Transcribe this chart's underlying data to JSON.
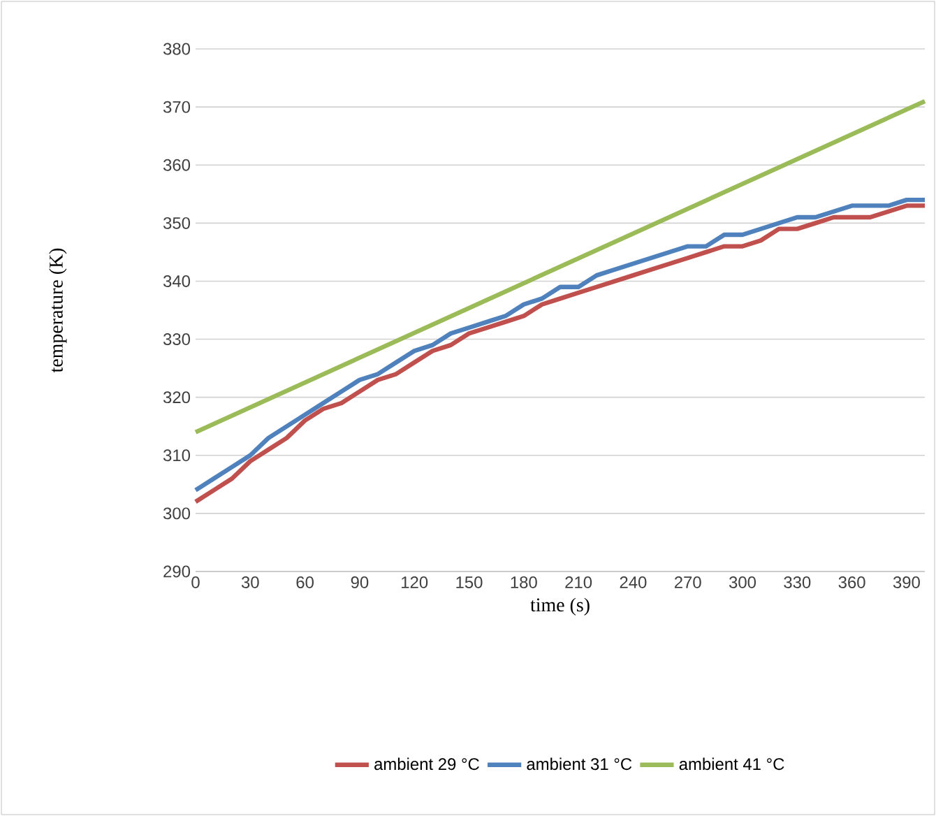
{
  "chart_data": {
    "type": "line",
    "xlabel": "time (s)",
    "ylabel": "temperature (K)",
    "x": [
      0,
      10,
      20,
      30,
      40,
      50,
      60,
      70,
      80,
      90,
      100,
      110,
      120,
      130,
      140,
      150,
      160,
      170,
      180,
      190,
      200,
      210,
      220,
      230,
      240,
      250,
      260,
      270,
      280,
      290,
      300,
      310,
      320,
      330,
      340,
      350,
      360,
      370,
      380,
      390,
      400
    ],
    "series": [
      {
        "name": "ambient 29 °C",
        "color": "#c0504d",
        "values": [
          302,
          304,
          306,
          309,
          311,
          313,
          316,
          318,
          319,
          321,
          323,
          324,
          326,
          328,
          329,
          331,
          332,
          333,
          334,
          336,
          337,
          338,
          339,
          340,
          341,
          342,
          343,
          344,
          345,
          346,
          346,
          347,
          349,
          349,
          350,
          351,
          351,
          351,
          352,
          353,
          353
        ]
      },
      {
        "name": "ambient 31 °C",
        "color": "#4f81bd",
        "values": [
          304,
          306,
          308,
          310,
          313,
          315,
          317,
          319,
          321,
          323,
          324,
          326,
          328,
          329,
          331,
          332,
          333,
          334,
          336,
          337,
          339,
          339,
          341,
          342,
          343,
          344,
          345,
          346,
          346,
          348,
          348,
          349,
          350,
          351,
          351,
          352,
          353,
          353,
          353,
          354,
          354
        ]
      },
      {
        "name": "ambient 41 °C",
        "color": "#9bbb59",
        "x": [
          0,
          400
        ],
        "values": [
          314,
          371
        ]
      }
    ],
    "xlim": [
      0,
      400
    ],
    "ylim": [
      290,
      380
    ],
    "xticks": [
      0,
      30,
      60,
      90,
      120,
      150,
      180,
      210,
      240,
      270,
      300,
      330,
      360,
      390
    ],
    "yticks": [
      290,
      300,
      310,
      320,
      330,
      340,
      350,
      360,
      370,
      380
    ],
    "grid": "y",
    "legend": "bottom",
    "marker": "none",
    "line_style": "solid"
  }
}
